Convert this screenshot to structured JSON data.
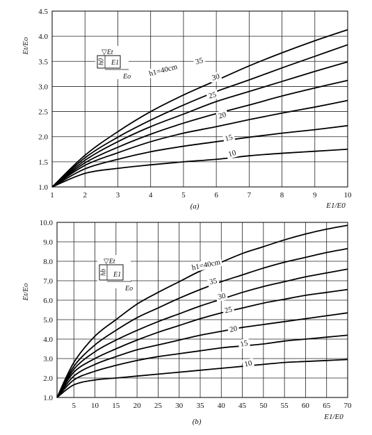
{
  "chart_data": [
    {
      "type": "line",
      "panel_label": "(a)",
      "xlabel": "E1/E0",
      "ylabel": "Et/Eo",
      "xlim": [
        1,
        10
      ],
      "ylim": [
        1.0,
        4.5
      ],
      "grid": true,
      "x_ticks": [
        "1",
        "2",
        "3",
        "4",
        "5",
        "6",
        "7",
        "8",
        "9",
        "10"
      ],
      "y_ticks": [
        "1.0",
        "1.5",
        "2.0",
        "2.5",
        "3.0",
        "3.5",
        "4.0",
        "4.5"
      ],
      "inset": {
        "top": "▽Et",
        "side": "h0",
        "middle": "E1",
        "bottom": "Eo"
      },
      "series": [
        {
          "name": "h1=40cm",
          "label_text": "h1=40cm",
          "x": [
            1,
            2,
            3,
            4,
            5,
            6,
            7,
            8,
            9,
            10
          ],
          "y": [
            1.0,
            1.63,
            2.1,
            2.5,
            2.83,
            3.12,
            3.41,
            3.67,
            3.91,
            4.13
          ]
        },
        {
          "name": "35",
          "label_text": "35",
          "x": [
            1,
            2,
            3,
            4,
            5,
            6,
            7,
            8,
            9,
            10
          ],
          "y": [
            1.0,
            1.58,
            1.99,
            2.33,
            2.63,
            2.9,
            3.13,
            3.37,
            3.6,
            3.83
          ]
        },
        {
          "name": "30",
          "label_text": "30",
          "x": [
            1,
            2,
            3,
            4,
            5,
            6,
            7,
            8,
            9,
            10
          ],
          "y": [
            1.0,
            1.53,
            1.9,
            2.2,
            2.45,
            2.7,
            2.9,
            3.1,
            3.3,
            3.49
          ]
        },
        {
          "name": "25",
          "label_text": "25",
          "x": [
            1,
            2,
            3,
            4,
            5,
            6,
            7,
            8,
            9,
            10
          ],
          "y": [
            1.0,
            1.48,
            1.79,
            2.05,
            2.27,
            2.46,
            2.63,
            2.81,
            2.97,
            3.12
          ]
        },
        {
          "name": "20",
          "label_text": "20",
          "x": [
            1,
            2,
            3,
            4,
            5,
            6,
            7,
            8,
            9,
            10
          ],
          "y": [
            1.0,
            1.43,
            1.68,
            1.9,
            2.07,
            2.2,
            2.34,
            2.47,
            2.59,
            2.72
          ]
        },
        {
          "name": "15",
          "label_text": "15",
          "x": [
            1,
            2,
            3,
            4,
            5,
            6,
            7,
            8,
            9,
            10
          ],
          "y": [
            1.0,
            1.36,
            1.55,
            1.7,
            1.81,
            1.9,
            1.99,
            2.07,
            2.14,
            2.22
          ]
        },
        {
          "name": "10",
          "label_text": "10",
          "x": [
            1,
            2,
            3,
            4,
            5,
            6,
            7,
            8,
            9,
            10
          ],
          "y": [
            1.0,
            1.27,
            1.37,
            1.44,
            1.5,
            1.55,
            1.62,
            1.67,
            1.71,
            1.75
          ]
        }
      ]
    },
    {
      "type": "line",
      "panel_label": "(b)",
      "xlabel": "E1/E0",
      "ylabel": "Et/Eo",
      "xlim": [
        1,
        70
      ],
      "ylim": [
        1.0,
        10.0
      ],
      "grid": true,
      "x_ticks": [
        "5",
        "10",
        "15",
        "20",
        "25",
        "30",
        "35",
        "40",
        "45",
        "50",
        "55",
        "60",
        "65",
        "70"
      ],
      "y_ticks": [
        "1.0",
        "2.0",
        "3.0",
        "4.0",
        "5.0",
        "6.0",
        "7.0",
        "8.0",
        "9.0",
        "10.0"
      ],
      "inset": {
        "top": "▽Et",
        "side": "hb",
        "middle": "E1",
        "bottom": "Eo"
      },
      "series": [
        {
          "name": "h1=40cm",
          "label_text": "h1=40cm",
          "x": [
            1,
            5,
            10,
            15,
            20,
            25,
            30,
            35,
            40,
            45,
            50,
            55,
            60,
            65,
            70
          ],
          "y": [
            1.0,
            2.8,
            4.15,
            5.0,
            5.8,
            6.4,
            6.95,
            7.5,
            7.95,
            8.4,
            8.75,
            9.1,
            9.4,
            9.65,
            9.85
          ]
        },
        {
          "name": "35",
          "label_text": "35",
          "x": [
            1,
            5,
            10,
            15,
            20,
            25,
            30,
            35,
            40,
            45,
            50,
            55,
            60,
            65,
            70
          ],
          "y": [
            1.0,
            2.6,
            3.7,
            4.45,
            5.1,
            5.6,
            6.1,
            6.55,
            6.95,
            7.3,
            7.65,
            7.95,
            8.2,
            8.45,
            8.65
          ]
        },
        {
          "name": "30",
          "label_text": "30",
          "x": [
            1,
            5,
            10,
            15,
            20,
            25,
            30,
            35,
            40,
            45,
            50,
            55,
            60,
            65,
            70
          ],
          "y": [
            1.0,
            2.45,
            3.35,
            3.95,
            4.45,
            4.9,
            5.3,
            5.7,
            6.05,
            6.4,
            6.7,
            6.95,
            7.2,
            7.4,
            7.6
          ]
        },
        {
          "name": "25",
          "label_text": "25",
          "x": [
            1,
            5,
            10,
            15,
            20,
            25,
            30,
            35,
            40,
            45,
            50,
            55,
            60,
            65,
            70
          ],
          "y": [
            1.0,
            2.3,
            3.0,
            3.5,
            3.95,
            4.35,
            4.7,
            5.05,
            5.35,
            5.6,
            5.85,
            6.05,
            6.25,
            6.4,
            6.55
          ]
        },
        {
          "name": "20",
          "label_text": "20",
          "x": [
            1,
            5,
            10,
            15,
            20,
            25,
            30,
            35,
            40,
            45,
            50,
            55,
            60,
            65,
            70
          ],
          "y": [
            1.0,
            2.1,
            2.7,
            3.1,
            3.45,
            3.7,
            3.95,
            4.2,
            4.4,
            4.6,
            4.75,
            4.9,
            5.05,
            5.2,
            5.35
          ]
        },
        {
          "name": "15",
          "label_text": "15",
          "x": [
            1,
            5,
            10,
            15,
            20,
            25,
            30,
            35,
            40,
            45,
            50,
            55,
            60,
            65,
            70
          ],
          "y": [
            1.0,
            1.9,
            2.35,
            2.65,
            2.9,
            3.1,
            3.25,
            3.4,
            3.55,
            3.65,
            3.75,
            3.9,
            4.0,
            4.1,
            4.2
          ]
        },
        {
          "name": "10",
          "label_text": "10",
          "x": [
            1,
            5,
            10,
            15,
            20,
            25,
            30,
            35,
            40,
            45,
            50,
            55,
            60,
            65,
            70
          ],
          "y": [
            1.0,
            1.65,
            1.9,
            2.0,
            2.1,
            2.2,
            2.3,
            2.4,
            2.5,
            2.6,
            2.7,
            2.8,
            2.85,
            2.9,
            2.95
          ]
        }
      ]
    }
  ]
}
